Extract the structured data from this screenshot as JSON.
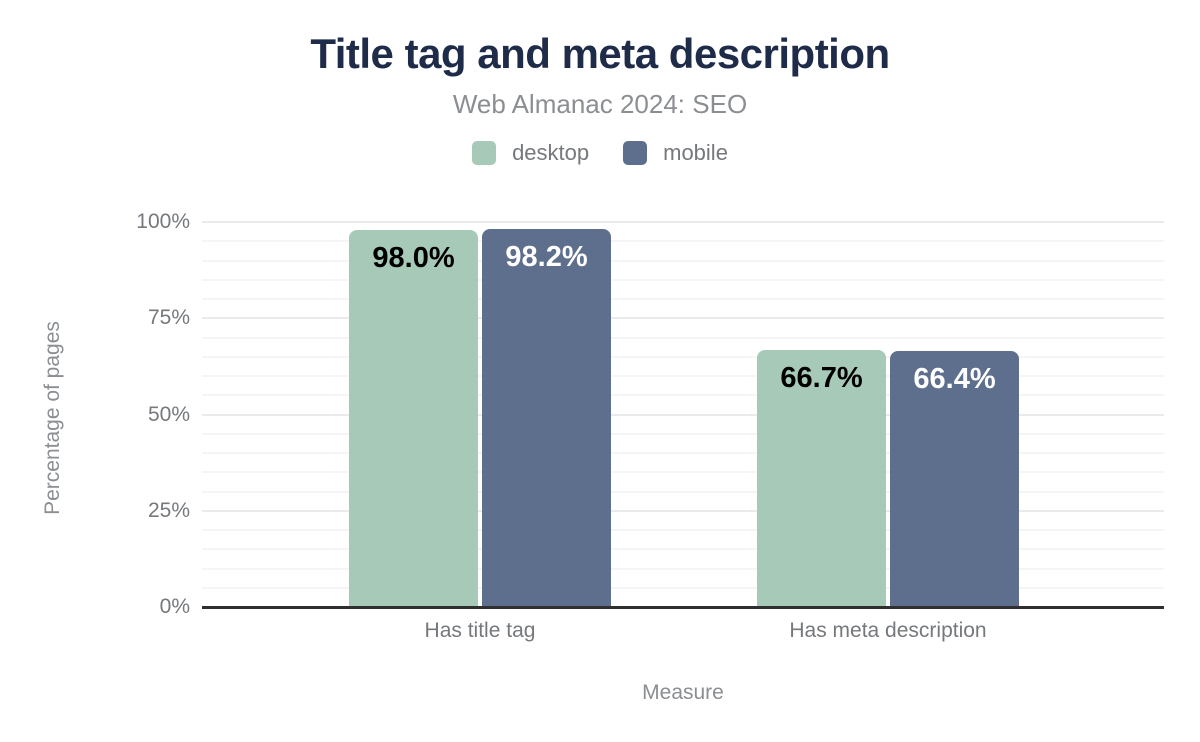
{
  "header": {
    "title": "Title tag and meta description",
    "subtitle": "Web Almanac 2024: SEO"
  },
  "legend": {
    "items": [
      {
        "label": "desktop",
        "color": "#a6c9b8"
      },
      {
        "label": "mobile",
        "color": "#5e6f8d"
      }
    ]
  },
  "colors": {
    "desktop_bar": "#a6c9b8",
    "mobile_bar": "#5e6f8d",
    "title_text": "#1e2b49",
    "subtitle_text": "#8b8e92",
    "axis_text": "#75787c",
    "axis_line": "#2f2f2f",
    "major_gridline": "#e9ebed",
    "minor_gridline": "#f4f5f6",
    "label_on_desktop": "#000000",
    "label_on_mobile": "#ffffff"
  },
  "chart_data": {
    "type": "bar",
    "title": "Title tag and meta description",
    "subtitle": "Web Almanac 2024: SEO",
    "categories": [
      "Has title tag",
      "Has meta description"
    ],
    "series": [
      {
        "name": "desktop",
        "values": [
          98.0,
          66.7
        ],
        "data_labels": [
          "98.0%",
          "66.7%"
        ],
        "color": "#a6c9b8",
        "label_color": "#000000"
      },
      {
        "name": "mobile",
        "values": [
          98.2,
          66.4
        ],
        "data_labels": [
          "98.2%",
          "66.4%"
        ],
        "color": "#5e6f8d",
        "label_color": "#ffffff"
      }
    ],
    "xlabel": "Measure",
    "ylabel": "Percentage of pages",
    "ylim": [
      0,
      100
    ],
    "yticks": [
      0,
      25,
      50,
      75,
      100
    ],
    "ytick_labels": [
      "0%",
      "25%",
      "50%",
      "75%",
      "100%"
    ],
    "minor_grid_step": 5,
    "grid": true,
    "legend_position": "top"
  }
}
